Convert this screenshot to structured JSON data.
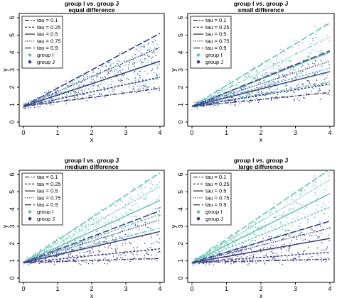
{
  "colors": {
    "group_i": "#5fc4b0",
    "group_j": "#3b3b8f",
    "axis": "#000000"
  },
  "chart_data": [
    {
      "type": "scatter",
      "title": "group I vs. group J",
      "subtitle": "equal difference",
      "xlabel": "x",
      "ylabel": "y",
      "xlim": [
        0,
        4
      ],
      "ylim": [
        0,
        6
      ],
      "xticks": [
        "0",
        "1",
        "2",
        "3",
        "4"
      ],
      "yticks": [
        "0",
        "1",
        "2",
        "3",
        "4",
        "5",
        "6"
      ],
      "legend_position": "top-left",
      "legend": [
        "tau = 0.1",
        "tau = 0.25",
        "tau = 0.5",
        "tau = 0.75",
        "tau = 0.9",
        "group I",
        "group J"
      ],
      "intercept": 0.9,
      "series": [
        {
          "name": "group I",
          "slopes": [
            0.26,
            0.42,
            0.65,
            0.85,
            1.05
          ],
          "point_spread": [
            0.25,
            1.05
          ]
        },
        {
          "name": "group J",
          "slopes": [
            0.26,
            0.42,
            0.65,
            0.85,
            1.05
          ],
          "point_spread": [
            0.25,
            1.05
          ]
        }
      ]
    },
    {
      "type": "scatter",
      "title": "group I vs. group J",
      "subtitle": "small difference",
      "xlabel": "x",
      "ylabel": "y",
      "xlim": [
        0,
        4
      ],
      "ylim": [
        0,
        6
      ],
      "xticks": [
        "0",
        "1",
        "2",
        "3",
        "4"
      ],
      "yticks": [
        "0",
        "1",
        "2",
        "3",
        "4",
        "5",
        "6"
      ],
      "legend_position": "top-left",
      "legend": [
        "tau = 0.1",
        "tau = 0.25",
        "tau = 0.5",
        "tau = 0.75",
        "tau = 0.9",
        "group I",
        "group J"
      ],
      "intercept": 0.9,
      "series": [
        {
          "name": "group I",
          "slopes": [
            0.35,
            0.55,
            0.78,
            1.0,
            1.2
          ],
          "point_spread": [
            0.3,
            1.25
          ]
        },
        {
          "name": "group J",
          "slopes": [
            0.2,
            0.32,
            0.5,
            0.65,
            0.8
          ],
          "point_spread": [
            0.15,
            0.85
          ]
        }
      ]
    },
    {
      "type": "scatter",
      "title": "group I vs. group J",
      "subtitle": "medium difference",
      "xlabel": "x",
      "ylabel": "y",
      "xlim": [
        0,
        4
      ],
      "ylim": [
        0,
        6
      ],
      "xticks": [
        "0",
        "1",
        "2",
        "3",
        "4"
      ],
      "yticks": [
        "0",
        "1",
        "2",
        "3",
        "4",
        "5",
        "6"
      ],
      "legend_position": "top-left",
      "legend": [
        "tau = 0.1",
        "tau = 0.25",
        "tau = 0.5",
        "tau = 0.75",
        "tau = 0.9",
        "group I",
        "group J"
      ],
      "intercept": 0.9,
      "series": [
        {
          "name": "group I",
          "slopes": [
            0.5,
            0.7,
            0.9,
            1.1,
            1.3
          ],
          "point_spread": [
            0.45,
            1.32
          ]
        },
        {
          "name": "group J",
          "slopes": [
            0.06,
            0.2,
            0.45,
            0.62,
            0.75
          ],
          "point_spread": [
            0.0,
            0.8
          ]
        }
      ]
    },
    {
      "type": "scatter",
      "title": "group I vs. group J",
      "subtitle": "large difference",
      "xlabel": "x",
      "ylabel": "y",
      "xlim": [
        0,
        4
      ],
      "ylim": [
        0,
        6
      ],
      "xticks": [
        "0",
        "1",
        "2",
        "3",
        "4"
      ],
      "yticks": [
        "0",
        "1",
        "2",
        "3",
        "4",
        "5",
        "6"
      ],
      "legend_position": "top-left",
      "legend": [
        "tau = 0.1",
        "tau = 0.25",
        "tau = 0.5",
        "tau = 0.75",
        "tau = 0.9",
        "group I",
        "group J"
      ],
      "intercept": 0.9,
      "series": [
        {
          "name": "group I",
          "slopes": [
            0.6,
            0.8,
            1.0,
            1.2,
            1.35
          ],
          "point_spread": [
            0.55,
            1.38
          ]
        },
        {
          "name": "group J",
          "slopes": [
            0.05,
            0.15,
            0.35,
            0.5,
            0.6
          ],
          "point_spread": [
            0.0,
            0.65
          ]
        }
      ]
    }
  ]
}
